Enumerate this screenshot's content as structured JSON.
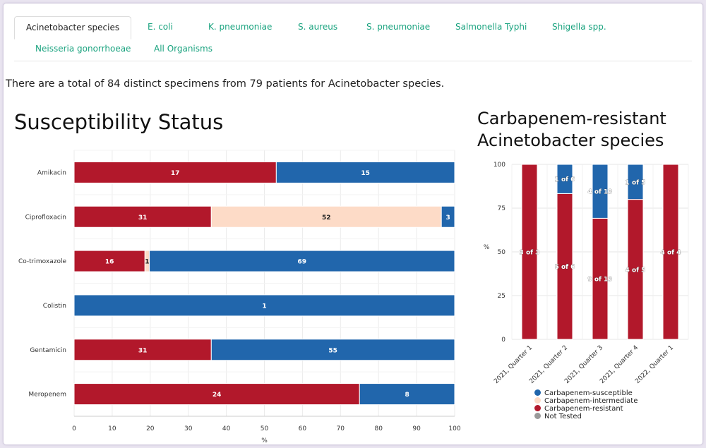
{
  "tabs": [
    {
      "label": "Acinetobacter species",
      "active": true
    },
    {
      "label": "E. coli"
    },
    {
      "label": "K. pneumoniae"
    },
    {
      "label": "S. aureus"
    },
    {
      "label": "S. pneumoniae"
    },
    {
      "label": "Salmonella Typhi"
    },
    {
      "label": "Shigella spp."
    },
    {
      "label": "Neisseria gonorrhoeae"
    },
    {
      "label": "All Organisms"
    }
  ],
  "summary": "There are a total of 84 distinct specimens from 79 patients for Acinetobacter species.",
  "colors": {
    "resistant": "#b2182b",
    "intermediate": "#fddbc7",
    "susceptible": "#2166ac",
    "not_tested": "#999999"
  },
  "chart_data": [
    {
      "type": "bar",
      "orientation": "horizontal",
      "stacked": true,
      "title": "Susceptibility Status",
      "xlabel": "%",
      "xlim": [
        0,
        100
      ],
      "xticks": [
        0,
        10,
        20,
        30,
        40,
        50,
        60,
        70,
        80,
        90,
        100
      ],
      "categories": [
        "Amikacin",
        "Ciprofloxacin",
        "Co-trimoxazole",
        "Colistin",
        "Gentamicin",
        "Meropenem"
      ],
      "series": [
        {
          "key": "resistant",
          "counts": [
            17,
            31,
            16,
            0,
            31,
            24
          ]
        },
        {
          "key": "intermediate",
          "counts": [
            0,
            52,
            1,
            0,
            0,
            0
          ]
        },
        {
          "key": "susceptible",
          "counts": [
            15,
            3,
            69,
            1,
            55,
            8
          ]
        }
      ]
    },
    {
      "type": "bar",
      "stacked": true,
      "title": "Carbapenem-resistant Acinetobacter species",
      "ylabel": "%",
      "ylim": [
        0,
        100
      ],
      "yticks": [
        0,
        25,
        50,
        75,
        100
      ],
      "categories": [
        "2021, Quarter 1",
        "2021, Quarter 2",
        "2021, Quarter 3",
        "2021, Quarter 4",
        "2022, Quarter 1"
      ],
      "series": [
        {
          "key": "resistant",
          "values": [
            100,
            83.3,
            69.2,
            80,
            100
          ],
          "labels": [
            "3 of 3",
            "5 of 6",
            "9 of 13",
            "4 of 5",
            "4 of 4"
          ]
        },
        {
          "key": "susceptible",
          "values": [
            0,
            16.7,
            30.8,
            20,
            0
          ],
          "labels": [
            "",
            "1 of 6",
            "4 of 13",
            "1 of 5",
            ""
          ]
        }
      ],
      "legend": {
        "position": "bottom",
        "entries": [
          "Carbapenem-susceptible",
          "Carbapenem-intermediate",
          "Carbapenem-resistant",
          "Not Tested"
        ]
      }
    }
  ]
}
